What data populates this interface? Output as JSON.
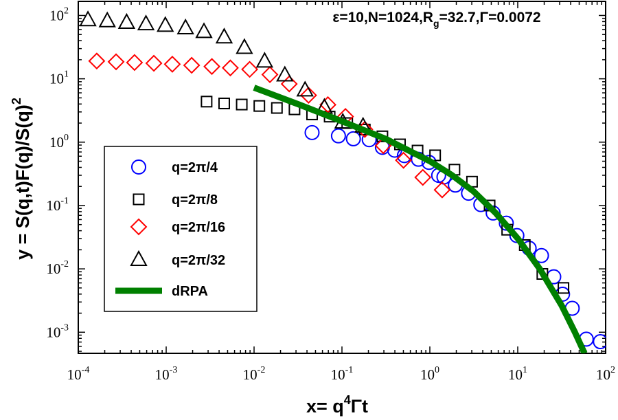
{
  "chart_data": {
    "type": "scatter",
    "title_parts": {
      "pre": "ε=10,N=1024,R",
      "sub": "g",
      "post": "=32.7,Γ=0.0072"
    },
    "xlabel_parts": {
      "pre": "x= q",
      "sup": "4",
      "post": "Γt"
    },
    "ylabel_parts": {
      "pre": "y = S(q,t)F(q)/S(q)",
      "sup": "2"
    },
    "x_scale": "log",
    "y_scale": "log",
    "xlim_exp": [
      -4,
      2
    ],
    "ylim_exp": [
      -3.333,
      2.222
    ],
    "x_ticks": [
      {
        "base": "10",
        "exp": "-4"
      },
      {
        "base": "10",
        "exp": "-3"
      },
      {
        "base": "10",
        "exp": "-2"
      },
      {
        "base": "10",
        "exp": "-1"
      },
      {
        "base": "10",
        "exp": "0"
      },
      {
        "base": "10",
        "exp": "1"
      },
      {
        "base": "10",
        "exp": "2"
      }
    ],
    "y_ticks": [
      {
        "base": "10",
        "exp": "-3"
      },
      {
        "base": "10",
        "exp": "-2"
      },
      {
        "base": "10",
        "exp": "-1"
      },
      {
        "base": "10",
        "exp": "0"
      },
      {
        "base": "10",
        "exp": "1"
      },
      {
        "base": "10",
        "exp": "2"
      }
    ],
    "legend_position": "lower-left",
    "series": [
      {
        "name": "q=2π/4",
        "marker": "circle",
        "color": "#0000ff",
        "points": [
          [
            -1.34,
            0.151
          ],
          [
            -1.04,
            0.099
          ],
          [
            -0.87,
            0.053
          ],
          [
            -0.69,
            0.039
          ],
          [
            -0.54,
            -0.082
          ],
          [
            -0.4,
            -0.127
          ],
          [
            -0.29,
            -0.212
          ],
          [
            -0.13,
            -0.27
          ],
          [
            -0.01,
            -0.319
          ],
          [
            0.1,
            -0.524
          ],
          [
            0.16,
            -0.55
          ],
          [
            0.29,
            -0.678
          ],
          [
            0.44,
            -0.806
          ],
          [
            0.58,
            -0.985
          ],
          [
            0.72,
            -1.119
          ],
          [
            0.87,
            -1.279
          ],
          [
            0.99,
            -1.474
          ],
          [
            1.13,
            -1.674
          ],
          [
            1.27,
            -1.79
          ],
          [
            1.41,
            -2.125
          ],
          [
            1.51,
            -2.4
          ],
          [
            1.62,
            -2.622
          ],
          [
            1.78,
            -3.109
          ],
          [
            1.94,
            -3.149
          ]
        ]
      },
      {
        "name": "q=2π/8",
        "marker": "square",
        "color": "#000000",
        "points": [
          [
            -2.54,
            0.64
          ],
          [
            -2.34,
            0.611
          ],
          [
            -2.14,
            0.594
          ],
          [
            -1.94,
            0.571
          ],
          [
            -1.74,
            0.54
          ],
          [
            -1.54,
            0.518
          ],
          [
            -1.34,
            0.438
          ],
          [
            -1.14,
            0.403
          ],
          [
            -0.94,
            0.301
          ],
          [
            -0.74,
            0.199
          ],
          [
            -0.54,
            0.092
          ],
          [
            -0.34,
            -0.035
          ],
          [
            -0.14,
            -0.133
          ],
          [
            0.06,
            -0.208
          ],
          [
            0.28,
            -0.434
          ],
          [
            0.48,
            -0.624
          ],
          [
            0.68,
            -1.0
          ],
          [
            0.88,
            -1.382
          ],
          [
            1.08,
            -1.624
          ],
          [
            1.28,
            -2.08
          ],
          [
            1.52,
            -2.301
          ]
        ]
      },
      {
        "name": "q=2π/16",
        "marker": "diamond",
        "color": "#ff0000",
        "points": [
          [
            -3.79,
            1.281
          ],
          [
            -3.57,
            1.268
          ],
          [
            -3.36,
            1.257
          ],
          [
            -3.14,
            1.245
          ],
          [
            -2.93,
            1.23
          ],
          [
            -2.71,
            1.213
          ],
          [
            -2.48,
            1.194
          ],
          [
            -2.27,
            1.172
          ],
          [
            -2.05,
            1.149
          ],
          [
            -1.82,
            1.066
          ],
          [
            -1.6,
            0.919
          ],
          [
            -1.38,
            0.74
          ],
          [
            -1.16,
            0.591
          ],
          [
            -0.96,
            0.405
          ],
          [
            -0.74,
            0.201
          ],
          [
            -0.53,
            -0.055
          ],
          [
            -0.3,
            -0.286
          ],
          [
            -0.08,
            -0.556
          ],
          [
            0.14,
            -0.753
          ]
        ]
      },
      {
        "name": "q=2π/32",
        "marker": "triangle",
        "color": "#000000",
        "points": [
          [
            -3.89,
            1.927
          ],
          [
            -3.67,
            1.91
          ],
          [
            -3.45,
            1.886
          ],
          [
            -3.23,
            1.862
          ],
          [
            -3.01,
            1.838
          ],
          [
            -2.78,
            1.799
          ],
          [
            -2.57,
            1.74
          ],
          [
            -2.34,
            1.655
          ],
          [
            -2.11,
            1.49
          ],
          [
            -1.88,
            1.274
          ],
          [
            -1.65,
            1.055
          ],
          [
            -1.42,
            0.818
          ],
          [
            -1.2,
            0.546
          ],
          [
            -0.99,
            0.311
          ],
          [
            -0.76,
            0.248
          ]
        ]
      },
      {
        "name": "dRPA",
        "marker": "line",
        "color": "#008000",
        "points": [
          [
            -2.0,
            0.86
          ],
          [
            -1.5,
            0.6
          ],
          [
            -1.0,
            0.33
          ],
          [
            -0.5,
            0.05
          ],
          [
            0.0,
            -0.3
          ],
          [
            0.25,
            -0.52
          ],
          [
            0.5,
            -0.78
          ],
          [
            0.75,
            -1.12
          ],
          [
            1.0,
            -1.52
          ],
          [
            1.25,
            -2.0
          ],
          [
            1.5,
            -2.58
          ],
          [
            1.65,
            -3.0
          ],
          [
            1.76,
            -3.333
          ]
        ]
      }
    ]
  }
}
